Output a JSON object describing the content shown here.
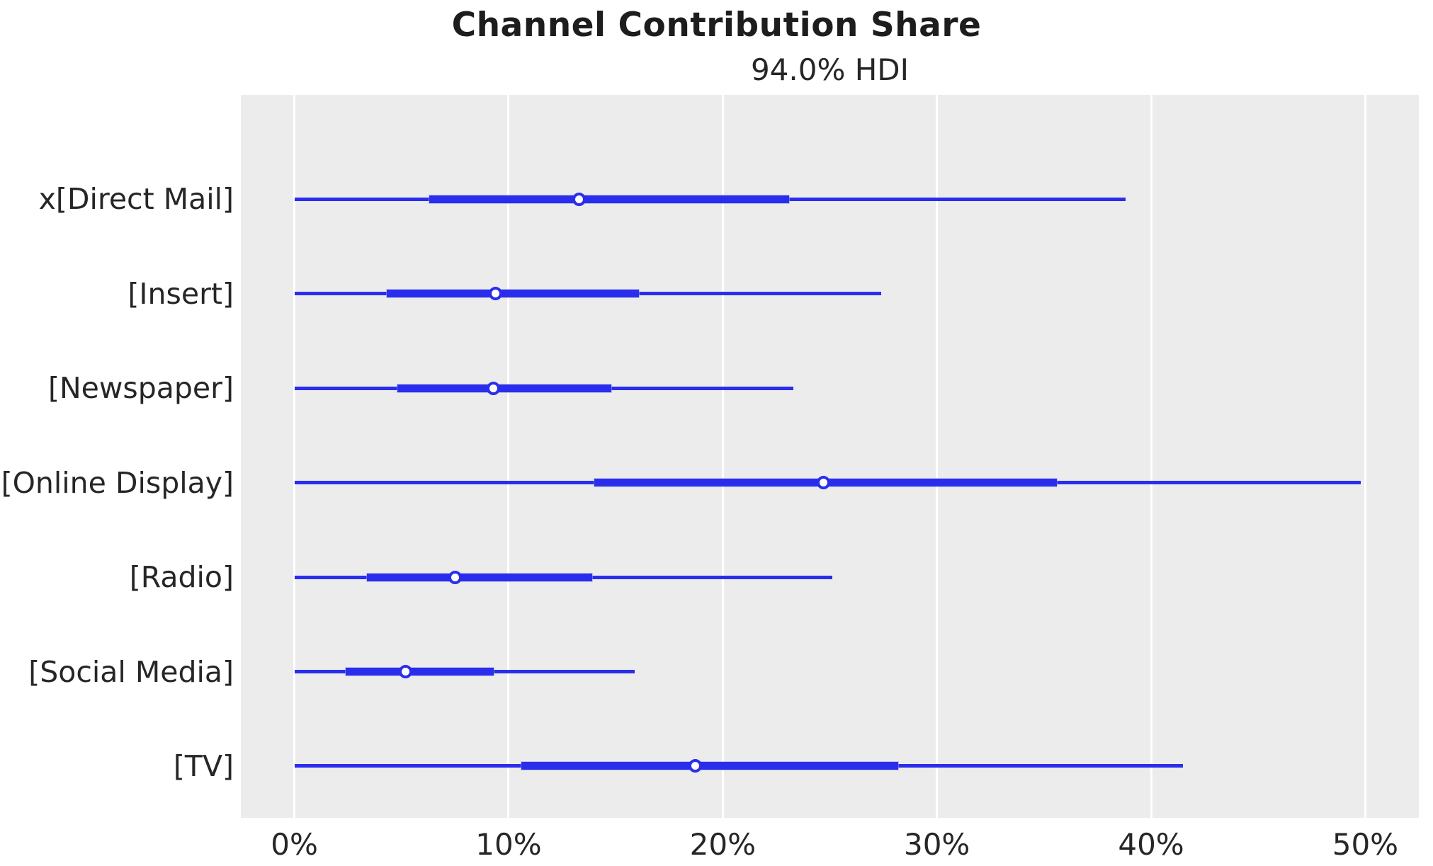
{
  "figure": {
    "title": "Channel Contribution Share",
    "subtitle": "94.0% HDI"
  },
  "colors": {
    "series_blue": "#2a2eec",
    "plot_background": "#ececec",
    "gridline": "#ffffff",
    "text": "#262626"
  },
  "chart_data": {
    "type": "forest",
    "title": "Channel Contribution Share",
    "subtitle": "94.0% HDI",
    "hdi_probability": "94.0%",
    "value_unit": "percent",
    "xlabel": "",
    "ylabel": "",
    "xlim": [
      -2.5,
      52.5
    ],
    "grid": "vertical white gridlines on gray panel",
    "legend": "none",
    "x_ticks": [
      {
        "value": 0,
        "label": "0%"
      },
      {
        "value": 10,
        "label": "10%"
      },
      {
        "value": 20,
        "label": "20%"
      },
      {
        "value": 30,
        "label": "30%"
      },
      {
        "value": 40,
        "label": "40%"
      },
      {
        "value": 50,
        "label": "50%"
      }
    ],
    "rows": [
      {
        "label": "x[Direct Mail]",
        "hdi_low": 0.0,
        "hdi_high": 38.8,
        "thick_low": 6.3,
        "thick_high": 23.1,
        "point": 13.3
      },
      {
        "label": "[Insert]",
        "hdi_low": 0.0,
        "hdi_high": 27.4,
        "thick_low": 4.3,
        "thick_high": 16.1,
        "point": 9.4
      },
      {
        "label": "[Newspaper]",
        "hdi_low": 0.0,
        "hdi_high": 23.3,
        "thick_low": 4.8,
        "thick_high": 14.8,
        "point": 9.3
      },
      {
        "label": "[Online Display]",
        "hdi_low": 0.0,
        "hdi_high": 49.8,
        "thick_low": 14.0,
        "thick_high": 35.6,
        "point": 24.7
      },
      {
        "label": "[Radio]",
        "hdi_low": 0.0,
        "hdi_high": 25.1,
        "thick_low": 3.4,
        "thick_high": 13.9,
        "point": 7.5
      },
      {
        "label": "[Social Media]",
        "hdi_low": 0.0,
        "hdi_high": 15.9,
        "thick_low": 2.4,
        "thick_high": 9.3,
        "point": 5.2
      },
      {
        "label": "[TV]",
        "hdi_low": 0.0,
        "hdi_high": 41.5,
        "thick_low": 10.6,
        "thick_high": 28.2,
        "point": 18.7
      }
    ]
  }
}
